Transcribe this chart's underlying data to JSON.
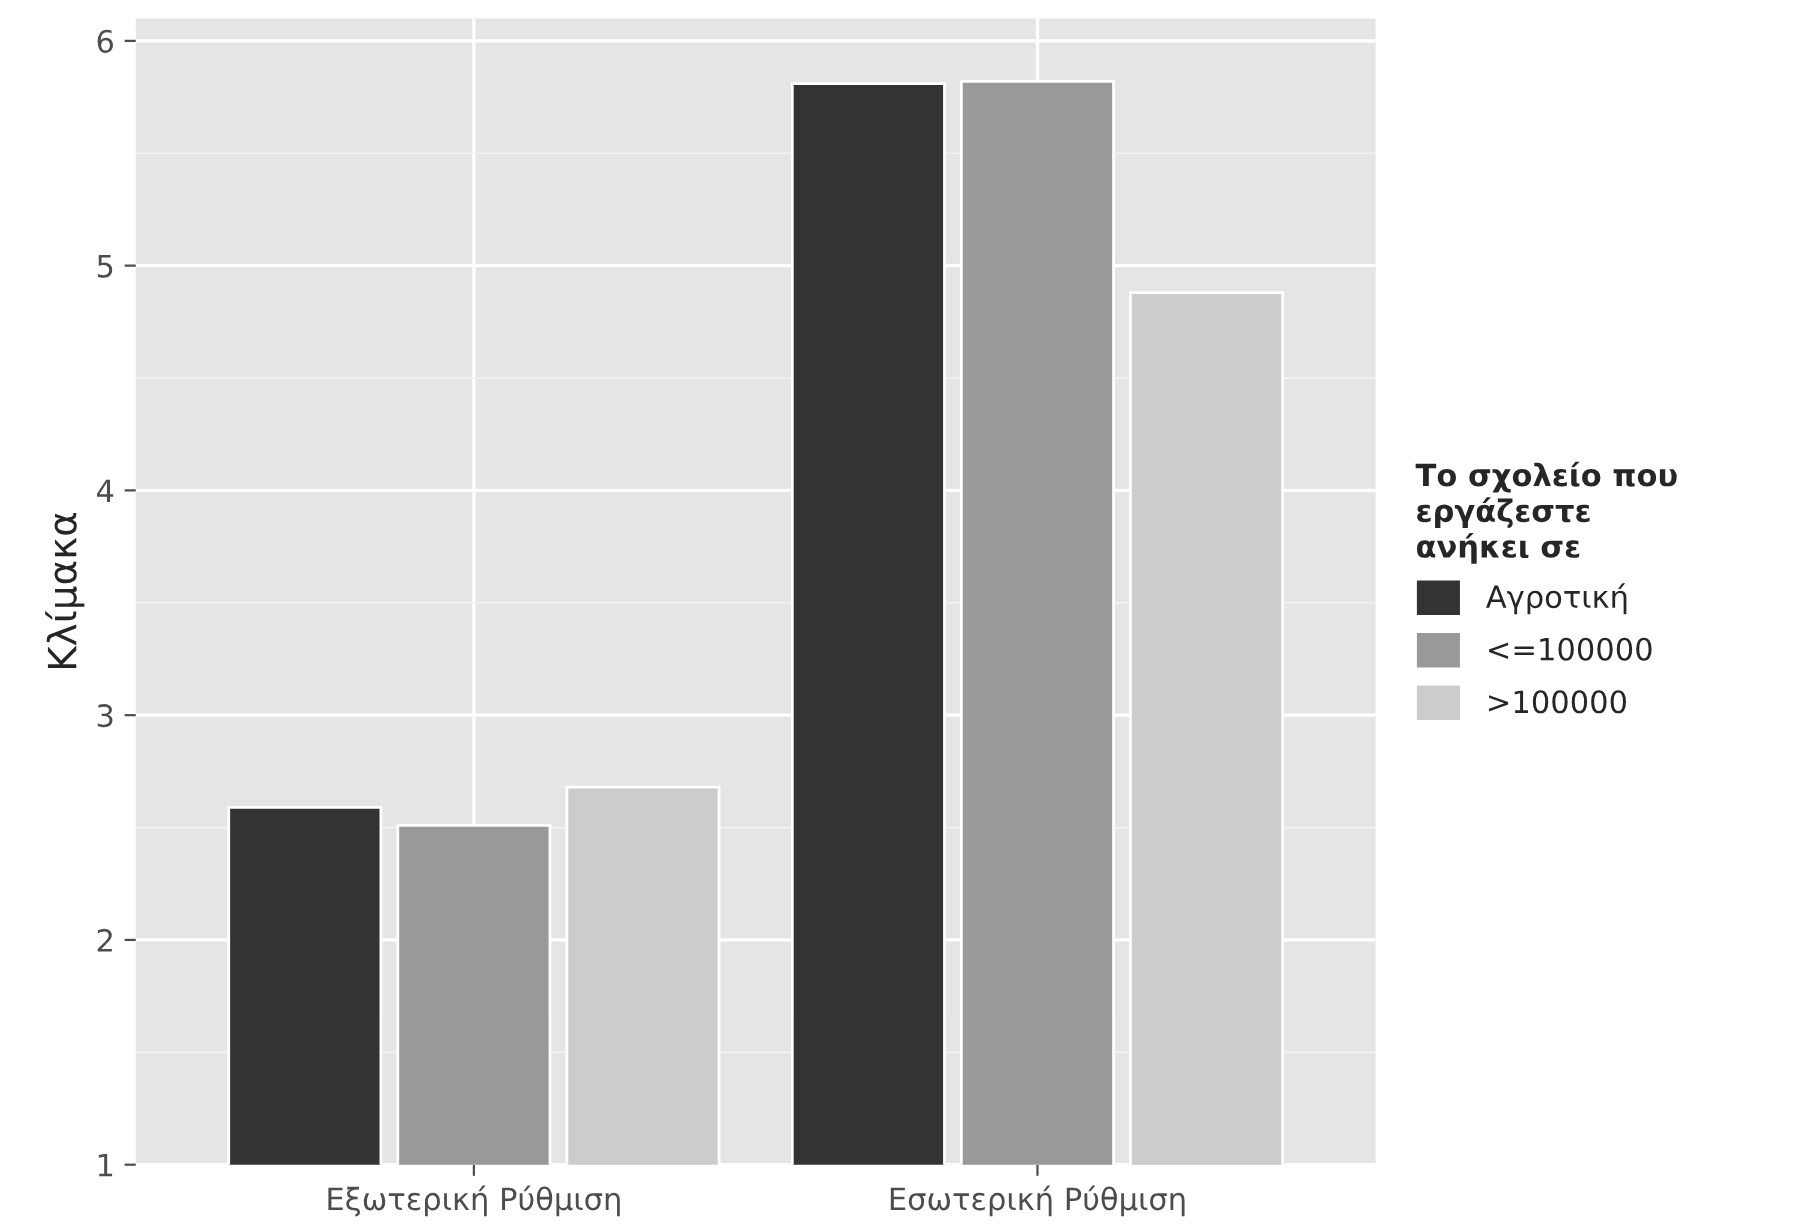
{
  "chart_data": {
    "type": "bar",
    "ylabel": "Κλίμακα",
    "legend_title": "Το σχολείο που\nεργάζεστε\nανήκει σε",
    "categories": [
      "Εξωτερική Ρύθμιση",
      "Εσωτερική Ρύθμιση"
    ],
    "series": [
      {
        "name": "Αγροτική",
        "color": "#333333",
        "values": [
          2.59,
          5.81
        ]
      },
      {
        "name": "<=100000",
        "color": "#999999",
        "values": [
          2.51,
          5.82
        ]
      },
      {
        "name": ">100000",
        "color": "#cccccc",
        "values": [
          2.68,
          4.88
        ]
      }
    ],
    "ylim": [
      1,
      6.1
    ],
    "yticks": [
      1,
      2,
      3,
      4,
      5,
      6
    ],
    "grid": true,
    "legend": "right"
  }
}
